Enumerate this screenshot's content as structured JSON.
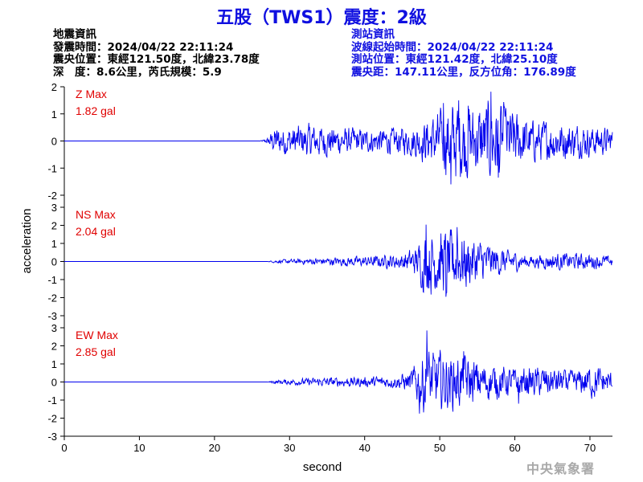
{
  "title": "五股（TWS1）震度：2級",
  "earthquake_info": {
    "heading": "地震資訊",
    "origin_time": "發震時間：2024/04/22 22:11:24",
    "epicenter": "震央位置：東經121.50度，北緯23.78度",
    "depth_magnitude": "深　度：8.6公里，芮氏規模：5.9"
  },
  "station_info": {
    "heading": "測站資訊",
    "wave_start": "波線起始時間：2024/04/22 22:11:24",
    "station_location": "測站位置：東經121.42度，北緯25.10度",
    "distance_azimuth": "震央距：147.11公里，反方位角：176.89度"
  },
  "watermark": "中央氣象署",
  "colors": {
    "title": "#1010e0",
    "trace": "#0000ee",
    "max_label": "#e00000",
    "axis": "#000000"
  },
  "chart_data": {
    "type": "line",
    "xlabel": "second",
    "ylabel": "acceleration",
    "xlim": [
      0,
      73
    ],
    "x_ticks": [
      0,
      10,
      20,
      30,
      40,
      50,
      60,
      70
    ],
    "panels": [
      {
        "name": "Z",
        "max_label": "Z Max",
        "max_value": "1.82 gal",
        "ylim": [
          -2,
          2
        ],
        "y_ticks": [
          -2,
          -1,
          0,
          1,
          2
        ],
        "envelope": [
          [
            0,
            0
          ],
          [
            26,
            0
          ],
          [
            27,
            0.1
          ],
          [
            28,
            0.55
          ],
          [
            33,
            0.65
          ],
          [
            40,
            0.45
          ],
          [
            46,
            0.55
          ],
          [
            49,
            0.95
          ],
          [
            52,
            1.6
          ],
          [
            55,
            1.35
          ],
          [
            57,
            1.7
          ],
          [
            59,
            1.3
          ],
          [
            62,
            0.8
          ],
          [
            66,
            0.75
          ],
          [
            70,
            0.6
          ],
          [
            73,
            0.5
          ]
        ],
        "peaks": [
          [
            50.5,
            1.4
          ],
          [
            51.5,
            -1.6
          ],
          [
            52.5,
            1.5
          ],
          [
            53.8,
            1.3
          ],
          [
            56.8,
            1.82
          ],
          [
            57.8,
            -1.35
          ]
        ]
      },
      {
        "name": "NS",
        "max_label": "NS Max",
        "max_value": "2.04 gal",
        "ylim": [
          -3,
          3
        ],
        "y_ticks": [
          -3,
          -2,
          -1,
          0,
          1,
          2,
          3
        ],
        "envelope": [
          [
            0,
            0
          ],
          [
            27,
            0
          ],
          [
            28,
            0.08
          ],
          [
            33,
            0.2
          ],
          [
            40,
            0.3
          ],
          [
            45,
            0.45
          ],
          [
            47,
            0.9
          ],
          [
            48,
            1.9
          ],
          [
            50,
            1.85
          ],
          [
            52,
            1.8
          ],
          [
            55,
            1.3
          ],
          [
            58,
            0.8
          ],
          [
            62,
            0.35
          ],
          [
            66,
            0.5
          ],
          [
            70,
            0.45
          ],
          [
            73,
            0.3
          ]
        ],
        "peaks": [
          [
            48.2,
            2.04
          ],
          [
            50.8,
            -1.95
          ],
          [
            52.3,
            1.9
          ],
          [
            53.5,
            -1.4
          ]
        ]
      },
      {
        "name": "EW",
        "max_label": "EW Max",
        "max_value": "2.85 gal",
        "ylim": [
          -3,
          3
        ],
        "y_ticks": [
          -3,
          -2,
          -1,
          0,
          1,
          2,
          3
        ],
        "envelope": [
          [
            0,
            0
          ],
          [
            27,
            0
          ],
          [
            28,
            0.12
          ],
          [
            34,
            0.25
          ],
          [
            40,
            0.3
          ],
          [
            44,
            0.35
          ],
          [
            46,
            0.6
          ],
          [
            48,
            1.9
          ],
          [
            50,
            1.7
          ],
          [
            53,
            1.5
          ],
          [
            56,
            1.1
          ],
          [
            60,
            0.8
          ],
          [
            64,
            0.9
          ],
          [
            68,
            0.6
          ],
          [
            70,
            1.0
          ],
          [
            73,
            0.6
          ]
        ],
        "peaks": [
          [
            48.3,
            2.85
          ],
          [
            47.3,
            -1.75
          ],
          [
            50.2,
            -1.5
          ],
          [
            53.2,
            1.7
          ],
          [
            60.5,
            -1.2
          ]
        ]
      }
    ]
  }
}
